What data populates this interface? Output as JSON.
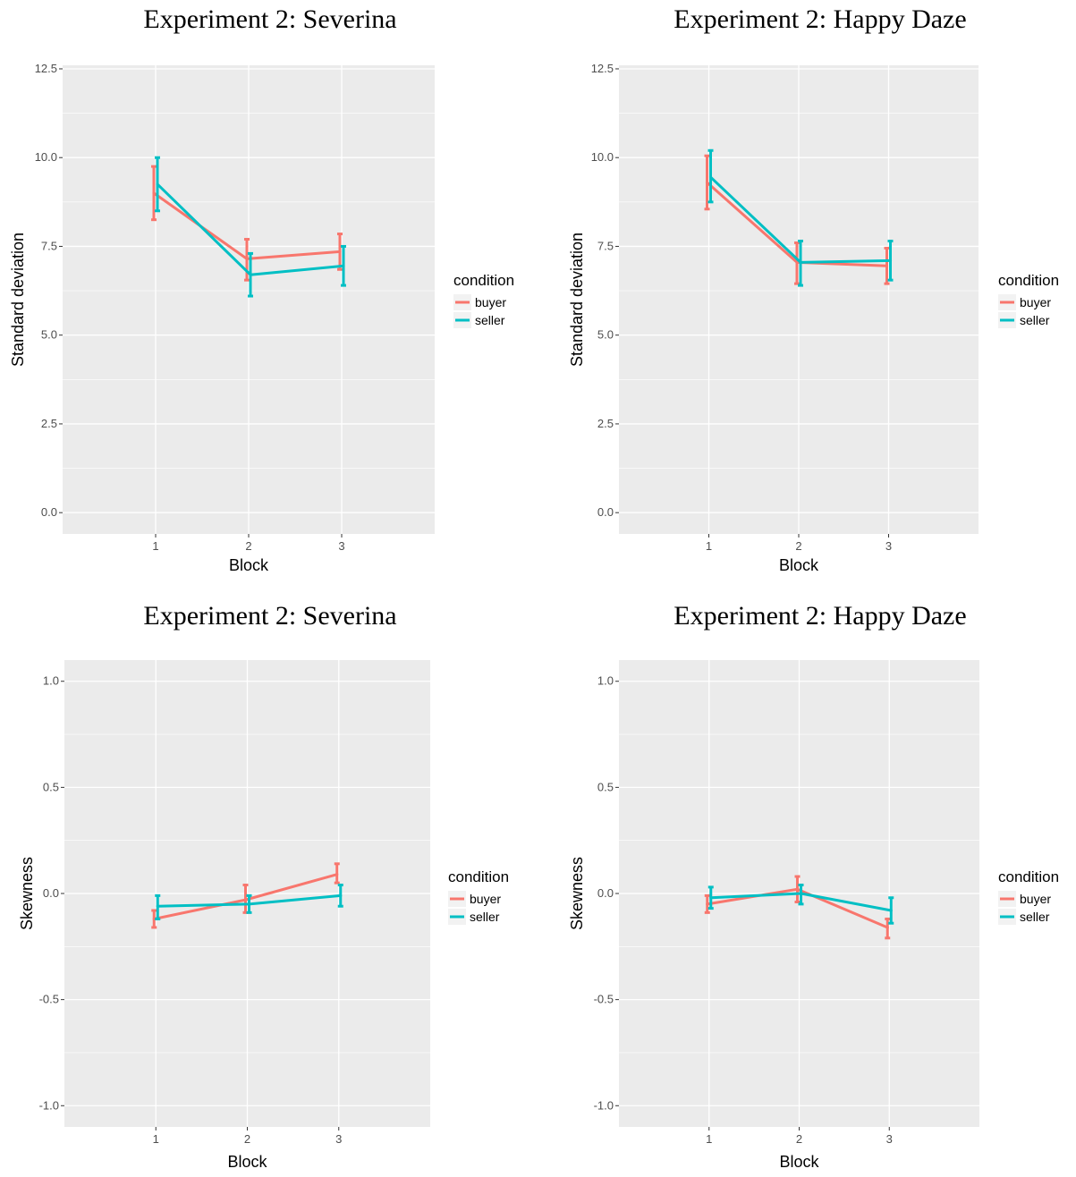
{
  "colors": {
    "buyer": "#F8766D",
    "seller": "#00BFC4",
    "panel_bg": "#EBEBEB",
    "grid": "#FFFFFF"
  },
  "chart_data": [
    {
      "type": "line",
      "title": "Experiment 2: Severina",
      "xlabel": "Block",
      "ylabel": "Standard deviation",
      "categories": [
        "1",
        "2",
        "3"
      ],
      "ylim": [
        -0.6,
        12.6
      ],
      "yticks": [
        "0.0",
        "2.5",
        "5.0",
        "7.5",
        "10.0",
        "12.5"
      ],
      "ytick_values": [
        0,
        2.5,
        5,
        7.5,
        10,
        12.5
      ],
      "grid": true,
      "legend": {
        "title": "condition",
        "position": "right"
      },
      "series": [
        {
          "name": "buyer",
          "values": [
            9.0,
            7.15,
            7.35
          ],
          "lower": [
            8.25,
            6.55,
            6.85
          ],
          "upper": [
            9.75,
            7.7,
            7.85
          ]
        },
        {
          "name": "seller",
          "values": [
            9.25,
            6.7,
            6.95
          ],
          "lower": [
            8.5,
            6.1,
            6.4
          ],
          "upper": [
            10.0,
            7.3,
            7.5
          ]
        }
      ]
    },
    {
      "type": "line",
      "title": "Experiment 2: Happy Daze",
      "xlabel": "Block",
      "ylabel": "Standard deviation",
      "categories": [
        "1",
        "2",
        "3"
      ],
      "ylim": [
        -0.6,
        12.6
      ],
      "yticks": [
        "0.0",
        "2.5",
        "5.0",
        "7.5",
        "10.0",
        "12.5"
      ],
      "ytick_values": [
        0,
        2.5,
        5,
        7.5,
        10,
        12.5
      ],
      "grid": true,
      "legend": {
        "title": "condition",
        "position": "right"
      },
      "series": [
        {
          "name": "buyer",
          "values": [
            9.3,
            7.05,
            6.95
          ],
          "lower": [
            8.55,
            6.45,
            6.45
          ],
          "upper": [
            10.05,
            7.6,
            7.45
          ]
        },
        {
          "name": "seller",
          "values": [
            9.45,
            7.05,
            7.1
          ],
          "lower": [
            8.75,
            6.4,
            6.55
          ],
          "upper": [
            10.2,
            7.65,
            7.65
          ]
        }
      ]
    },
    {
      "type": "line",
      "title": "Experiment 2: Severina",
      "xlabel": "Block",
      "ylabel": "Skewness",
      "categories": [
        "1",
        "2",
        "3"
      ],
      "ylim": [
        -1.1,
        1.1
      ],
      "yticks": [
        "-1.0",
        "-0.5",
        "0.0",
        "0.5",
        "1.0"
      ],
      "ytick_values": [
        -1,
        -0.5,
        0,
        0.5,
        1
      ],
      "grid": true,
      "legend": {
        "title": "condition",
        "position": "right"
      },
      "series": [
        {
          "name": "buyer",
          "values": [
            -0.12,
            -0.03,
            0.09
          ],
          "lower": [
            -0.16,
            -0.09,
            0.05
          ],
          "upper": [
            -0.08,
            0.04,
            0.14
          ]
        },
        {
          "name": "seller",
          "values": [
            -0.06,
            -0.05,
            -0.01
          ],
          "lower": [
            -0.12,
            -0.09,
            -0.06
          ],
          "upper": [
            -0.01,
            -0.01,
            0.04
          ]
        }
      ]
    },
    {
      "type": "line",
      "title": "Experiment 2: Happy Daze",
      "xlabel": "Block",
      "ylabel": "Skewness",
      "categories": [
        "1",
        "2",
        "3"
      ],
      "ylim": [
        -1.1,
        1.1
      ],
      "yticks": [
        "-1.0",
        "-0.5",
        "0.0",
        "0.5",
        "1.0"
      ],
      "ytick_values": [
        -1,
        -0.5,
        0,
        0.5,
        1
      ],
      "grid": true,
      "legend": {
        "title": "condition",
        "position": "right"
      },
      "series": [
        {
          "name": "buyer",
          "values": [
            -0.05,
            0.02,
            -0.16
          ],
          "lower": [
            -0.09,
            -0.04,
            -0.21
          ],
          "upper": [
            -0.01,
            0.08,
            -0.12
          ]
        },
        {
          "name": "seller",
          "values": [
            -0.02,
            0.0,
            -0.08
          ],
          "lower": [
            -0.07,
            -0.05,
            -0.14
          ],
          "upper": [
            0.03,
            0.04,
            -0.02
          ]
        }
      ]
    }
  ]
}
